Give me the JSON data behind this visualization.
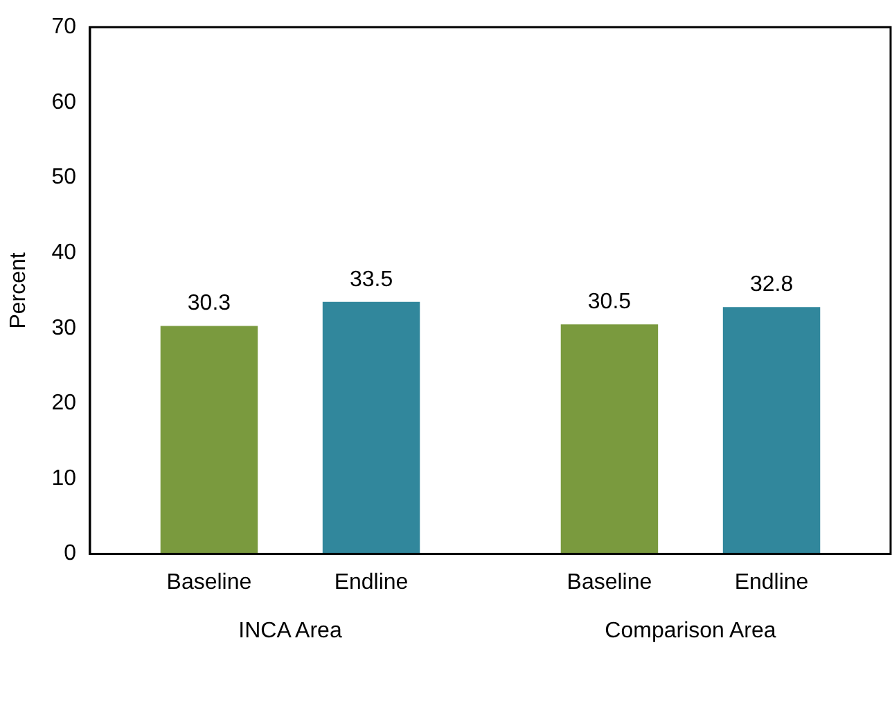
{
  "chart_data": {
    "type": "bar",
    "ylabel": "Percent",
    "categories": [
      "INCA Area",
      "Comparison Area"
    ],
    "series": [
      {
        "name": "Baseline",
        "color": "#7a9a3e",
        "values": [
          30.3,
          30.5
        ]
      },
      {
        "name": "Endline",
        "color": "#31879c",
        "values": [
          33.5,
          32.8
        ]
      }
    ],
    "ylim": [
      0,
      70
    ],
    "yticks": [
      0,
      10,
      20,
      30,
      40,
      50,
      60,
      70
    ],
    "grid": false,
    "legend": false,
    "data_labels": true
  }
}
